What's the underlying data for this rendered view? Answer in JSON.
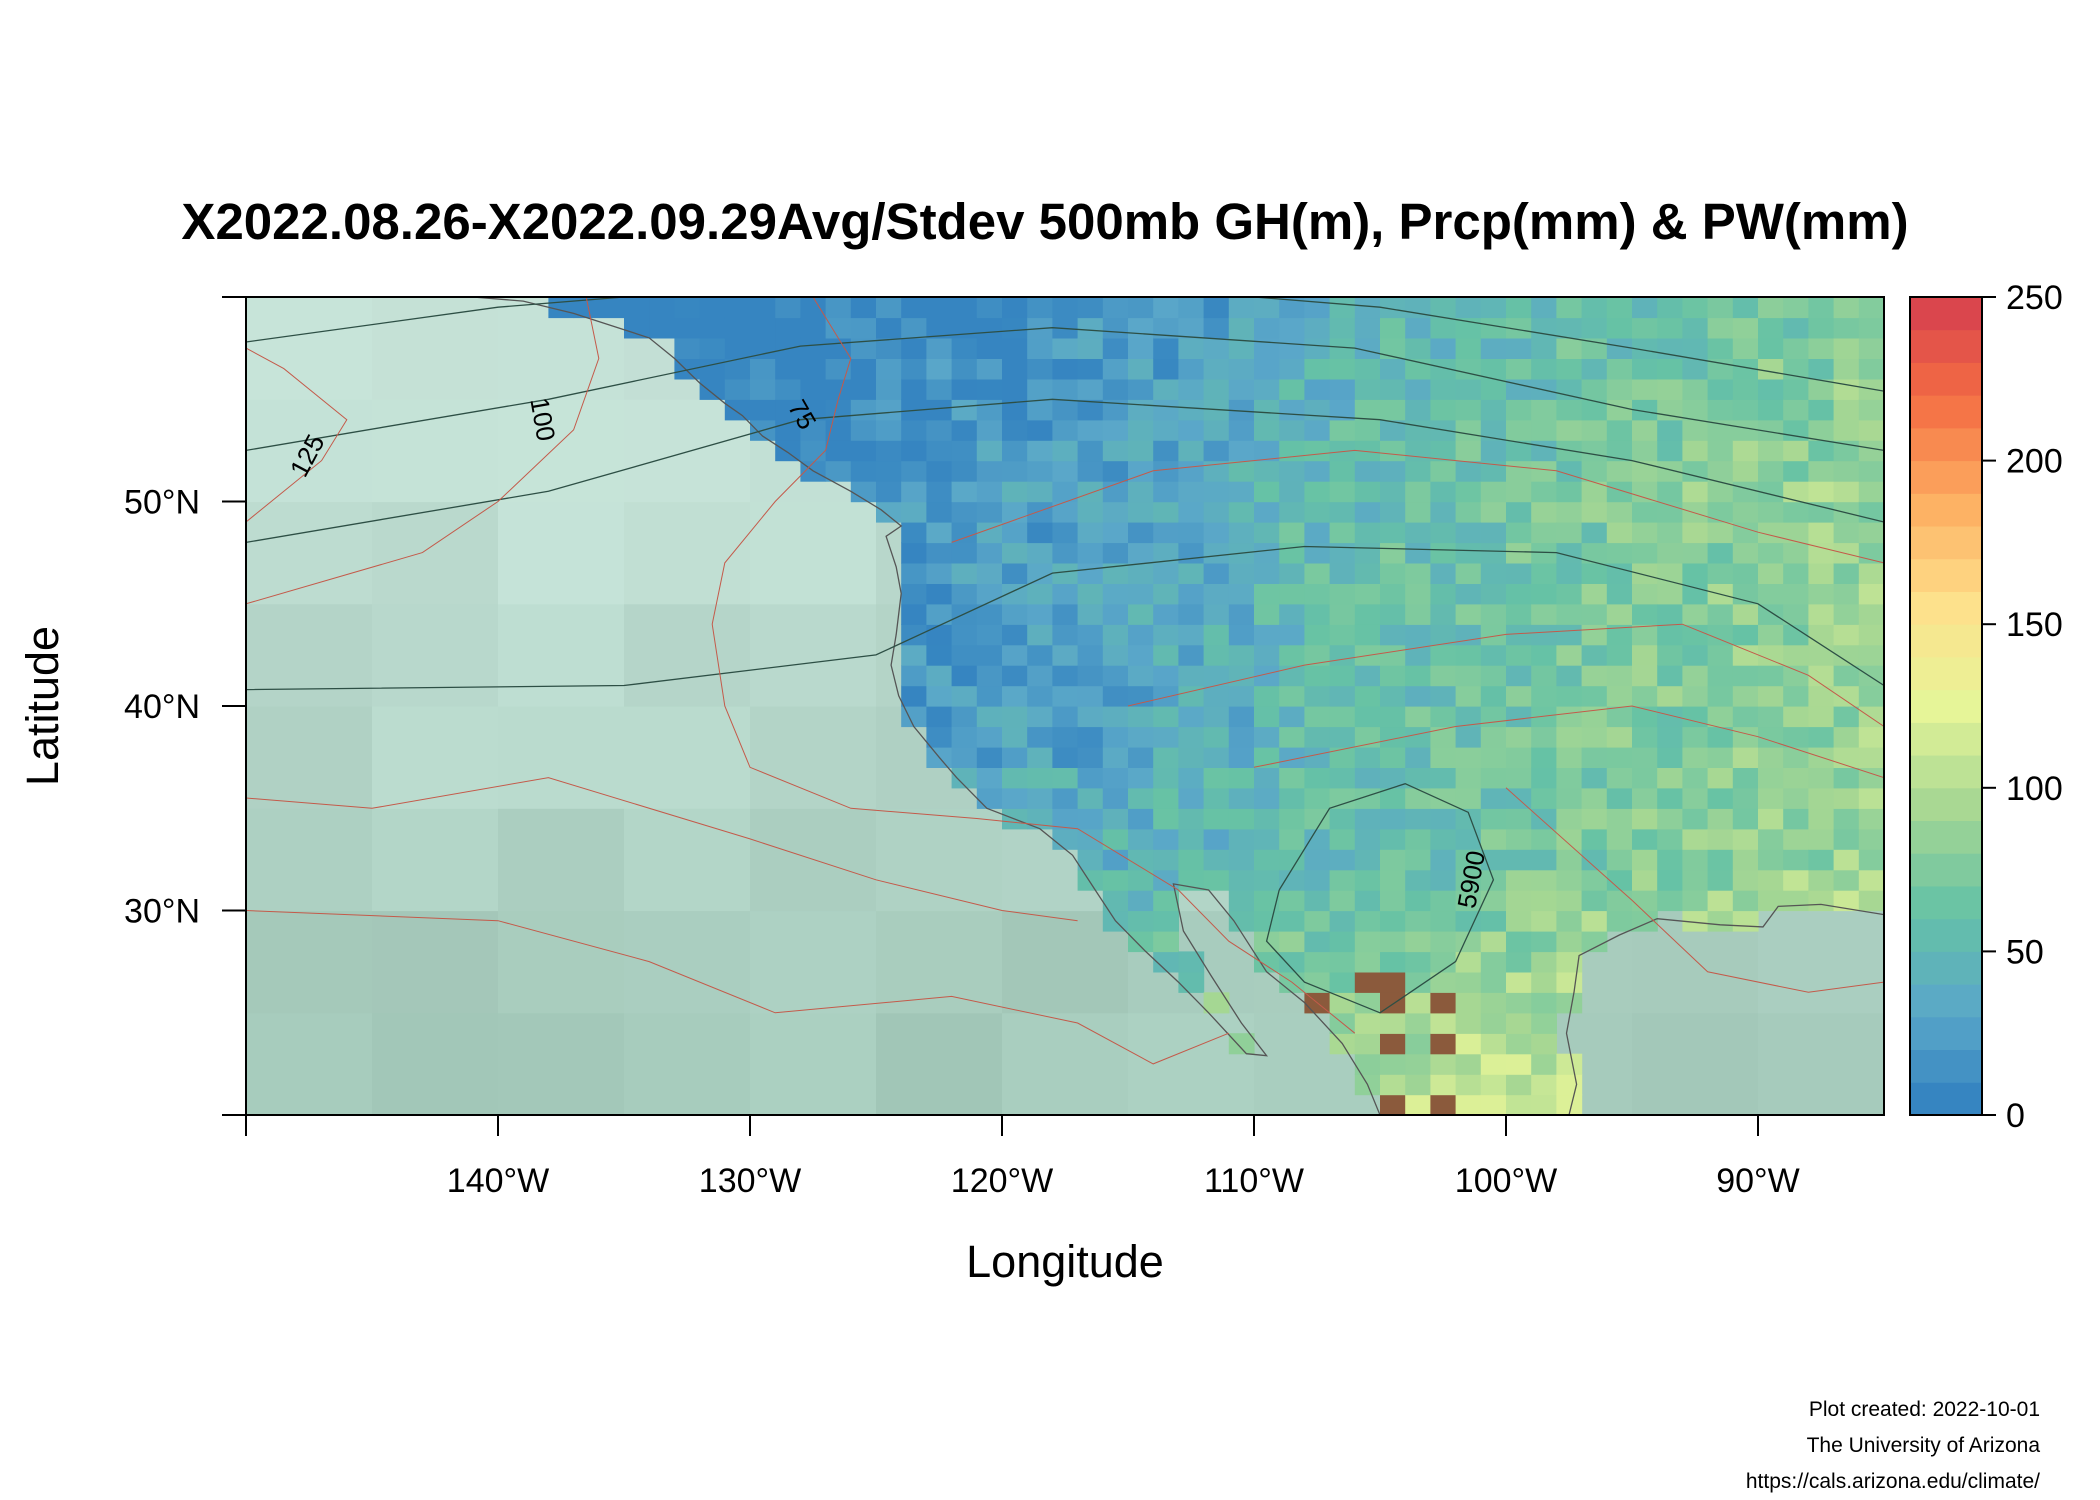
{
  "chart_data": {
    "type": "heatmap",
    "title": "X2022.08.26-X2022.09.29Avg/Stdev 500mb GH(m), Prcp(mm) & PW(mm)",
    "xlabel": "Longitude",
    "ylabel": "Latitude",
    "xlim": [
      -150,
      -85
    ],
    "ylim": [
      20,
      60
    ],
    "x_ticks": [
      {
        "value": -140,
        "label": "140°W"
      },
      {
        "value": -130,
        "label": "130°W"
      },
      {
        "value": -120,
        "label": "120°W"
      },
      {
        "value": -110,
        "label": "110°W"
      },
      {
        "value": -100,
        "label": "100°W"
      },
      {
        "value": -90,
        "label": "90°W"
      }
    ],
    "y_ticks": [
      {
        "value": 30,
        "label": "30°N"
      },
      {
        "value": 40,
        "label": "40°N"
      },
      {
        "value": 50,
        "label": "50°N"
      }
    ],
    "colorbar": {
      "range": [
        0,
        250
      ],
      "ticks": [
        {
          "value": 0,
          "label": "0"
        },
        {
          "value": 50,
          "label": "50"
        },
        {
          "value": 100,
          "label": "100"
        },
        {
          "value": 150,
          "label": "150"
        },
        {
          "value": 200,
          "label": "200"
        },
        {
          "value": 250,
          "label": "250"
        }
      ],
      "stops": [
        "#2f7fbf",
        "#5aa7c9",
        "#66c2a5",
        "#a6d793",
        "#e6f598",
        "#fee08b",
        "#fdae61",
        "#f46d43",
        "#d53e4f"
      ]
    },
    "contour_labels": [
      {
        "text": "125",
        "lon": -147.5,
        "lat": 52.2,
        "rotate": -62,
        "color": "#555555"
      },
      {
        "text": "100",
        "lon": -138.3,
        "lat": 54.0,
        "rotate": 80,
        "color": "#555555"
      },
      {
        "text": "75",
        "lon": -128.0,
        "lat": 54.2,
        "rotate": 60,
        "color": "#555555"
      },
      {
        "text": "5900",
        "lon": -101.3,
        "lat": 31.5,
        "rotate": -80,
        "color": "#333333"
      }
    ]
  },
  "credits": {
    "line1": "Plot created: 2022-10-01",
    "line2": "The University of Arizona",
    "line3": "https://cals.arizona.edu/climate/"
  }
}
